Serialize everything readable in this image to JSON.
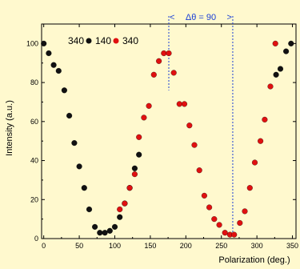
{
  "chart_data": {
    "type": "scatter",
    "xlabel": "Polarization (deg.)",
    "ylabel": "Intensity (a.u.)",
    "xlim": [
      -3,
      355
    ],
    "ylim": [
      0,
      110
    ],
    "xticks": [
      "0",
      "50",
      "100",
      "150",
      "200",
      "250",
      "300",
      "350"
    ],
    "yticks": [
      "0",
      "20",
      "40",
      "60",
      "80",
      "100"
    ],
    "grid": false,
    "legend_position": "top-left",
    "legend": {
      "prefix": "340",
      "entries": [
        {
          "color": "#111111",
          "label": "140"
        },
        {
          "color": "#e01010",
          "label": "340"
        }
      ]
    },
    "annotation": {
      "text": "Δθ = 90",
      "x_start": 176,
      "x_end": 266,
      "left_arrow": "<",
      "right_arrow": ">"
    },
    "series": [
      {
        "color": "#111111",
        "points": [
          [
            0,
            100
          ],
          [
            7,
            95
          ],
          [
            14,
            89
          ],
          [
            21,
            86
          ],
          [
            29,
            76
          ],
          [
            36,
            63
          ],
          [
            43,
            49
          ],
          [
            50,
            37
          ],
          [
            57,
            26
          ],
          [
            64,
            15
          ],
          [
            72,
            6
          ],
          [
            79,
            3
          ],
          [
            86,
            3
          ],
          [
            93,
            4
          ],
          [
            100,
            6
          ],
          [
            107,
            11
          ],
          [
            114,
            18
          ],
          [
            121,
            26
          ],
          [
            128,
            36
          ],
          [
            134,
            43
          ],
          [
            327,
            84
          ],
          [
            333,
            87
          ],
          [
            341,
            96
          ],
          [
            348,
            100
          ]
        ]
      },
      {
        "color": "#e01010",
        "points": [
          [
            107,
            15
          ],
          [
            114,
            18
          ],
          [
            121,
            26
          ],
          [
            128,
            33
          ],
          [
            134,
            52
          ],
          [
            141,
            62
          ],
          [
            148,
            68
          ],
          [
            155,
            84
          ],
          [
            162,
            91
          ],
          [
            169,
            95
          ],
          [
            176,
            95
          ],
          [
            183,
            85
          ],
          [
            191,
            69
          ],
          [
            198,
            69
          ],
          [
            205,
            58
          ],
          [
            212,
            48
          ],
          [
            219,
            35
          ],
          [
            226,
            22
          ],
          [
            233,
            16
          ],
          [
            240,
            10
          ],
          [
            247,
            7
          ],
          [
            255,
            3
          ],
          [
            262,
            2
          ],
          [
            268,
            2
          ],
          [
            276,
            8
          ],
          [
            283,
            14
          ],
          [
            290,
            26
          ],
          [
            297,
            39
          ],
          [
            305,
            50
          ],
          [
            311,
            61
          ],
          [
            319,
            78
          ],
          [
            326,
            100
          ]
        ]
      }
    ]
  }
}
